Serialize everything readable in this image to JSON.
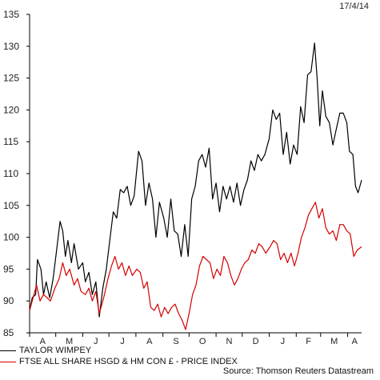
{
  "date_stamp": "17/4/14",
  "source": "Source: Thomson Reuters Datastream",
  "chart_data": {
    "type": "line",
    "ylim": [
      85,
      135
    ],
    "yticks": [
      85,
      90,
      95,
      100,
      105,
      110,
      115,
      120,
      125,
      130,
      135
    ],
    "months": [
      "A",
      "M",
      "J",
      "J",
      "A",
      "S",
      "O",
      "N",
      "D",
      "J",
      "F",
      "M",
      "A"
    ],
    "x_start": "2013-04-01",
    "series": [
      {
        "name": "TAYLOR WIMPEY",
        "color": "#000000",
        "points": [
          [
            "2013-04-01",
            88.5
          ],
          [
            "2013-04-04",
            90.5
          ],
          [
            "2013-04-08",
            91
          ],
          [
            "2013-04-10",
            96.5
          ],
          [
            "2013-04-14",
            95
          ],
          [
            "2013-04-17",
            91
          ],
          [
            "2013-04-20",
            93
          ],
          [
            "2013-04-24",
            90.5
          ],
          [
            "2013-04-28",
            93.5
          ],
          [
            "2013-05-02",
            98
          ],
          [
            "2013-05-06",
            102.5
          ],
          [
            "2013-05-09",
            101
          ],
          [
            "2013-05-12",
            97
          ],
          [
            "2013-05-15",
            99.5
          ],
          [
            "2013-05-19",
            96
          ],
          [
            "2013-05-22",
            99
          ],
          [
            "2013-05-27",
            95
          ],
          [
            "2013-06-01",
            96
          ],
          [
            "2013-06-04",
            93
          ],
          [
            "2013-06-08",
            94.5
          ],
          [
            "2013-06-12",
            91
          ],
          [
            "2013-06-16",
            93
          ],
          [
            "2013-06-20",
            87.5
          ],
          [
            "2013-06-24",
            92
          ],
          [
            "2013-06-28",
            95
          ],
          [
            "2013-07-02",
            99.5
          ],
          [
            "2013-07-06",
            104
          ],
          [
            "2013-07-10",
            103
          ],
          [
            "2013-07-14",
            107.5
          ],
          [
            "2013-07-18",
            107
          ],
          [
            "2013-07-22",
            108
          ],
          [
            "2013-07-26",
            105
          ],
          [
            "2013-07-30",
            106.5
          ],
          [
            "2013-08-04",
            113.5
          ],
          [
            "2013-08-08",
            112
          ],
          [
            "2013-08-12",
            105
          ],
          [
            "2013-08-16",
            108.5
          ],
          [
            "2013-08-20",
            106
          ],
          [
            "2013-08-24",
            100
          ],
          [
            "2013-08-28",
            105.5
          ],
          [
            "2013-09-02",
            103
          ],
          [
            "2013-09-06",
            100
          ],
          [
            "2013-09-10",
            106
          ],
          [
            "2013-09-14",
            101
          ],
          [
            "2013-09-18",
            100.5
          ],
          [
            "2013-09-22",
            97
          ],
          [
            "2013-09-26",
            102
          ],
          [
            "2013-09-30",
            97
          ],
          [
            "2013-10-04",
            106
          ],
          [
            "2013-10-08",
            108
          ],
          [
            "2013-10-12",
            112
          ],
          [
            "2013-10-16",
            113
          ],
          [
            "2013-10-20",
            111
          ],
          [
            "2013-10-24",
            114
          ],
          [
            "2013-10-28",
            106
          ],
          [
            "2013-11-01",
            108.5
          ],
          [
            "2013-11-05",
            104
          ],
          [
            "2013-11-09",
            108
          ],
          [
            "2013-11-13",
            106
          ],
          [
            "2013-11-17",
            108
          ],
          [
            "2013-11-21",
            105.5
          ],
          [
            "2013-11-25",
            108.5
          ],
          [
            "2013-11-29",
            105
          ],
          [
            "2013-12-03",
            107.5
          ],
          [
            "2013-12-07",
            109
          ],
          [
            "2013-12-11",
            112
          ],
          [
            "2013-12-15",
            110.5
          ],
          [
            "2013-12-19",
            113
          ],
          [
            "2013-12-23",
            112
          ],
          [
            "2013-12-27",
            113
          ],
          [
            "2014-01-01",
            115.5
          ],
          [
            "2014-01-05",
            120
          ],
          [
            "2014-01-09",
            118.5
          ],
          [
            "2014-01-13",
            119.5
          ],
          [
            "2014-01-17",
            113
          ],
          [
            "2014-01-21",
            116.5
          ],
          [
            "2014-01-25",
            111.5
          ],
          [
            "2014-01-29",
            114.5
          ],
          [
            "2014-02-02",
            113
          ],
          [
            "2014-02-06",
            120.5
          ],
          [
            "2014-02-10",
            118
          ],
          [
            "2014-02-14",
            125.5
          ],
          [
            "2014-02-18",
            126
          ],
          [
            "2014-02-22",
            130.5
          ],
          [
            "2014-02-25",
            125
          ],
          [
            "2014-02-28",
            117.5
          ],
          [
            "2014-03-03",
            123
          ],
          [
            "2014-03-07",
            119
          ],
          [
            "2014-03-11",
            118
          ],
          [
            "2014-03-15",
            114.5
          ],
          [
            "2014-03-19",
            117
          ],
          [
            "2014-03-23",
            119.5
          ],
          [
            "2014-03-27",
            119.5
          ],
          [
            "2014-03-31",
            118
          ],
          [
            "2014-04-03",
            113.5
          ],
          [
            "2014-04-07",
            113
          ],
          [
            "2014-04-10",
            108
          ],
          [
            "2014-04-13",
            107
          ],
          [
            "2014-04-17",
            109
          ]
        ]
      },
      {
        "name": "FTSE ALL SHARE HSGD & HM CON £ - PRICE INDEX",
        "color": "#d40000",
        "points": [
          [
            "2013-04-01",
            88.5
          ],
          [
            "2013-04-05",
            90.5
          ],
          [
            "2013-04-09",
            92.5
          ],
          [
            "2013-04-13",
            90
          ],
          [
            "2013-04-17",
            91
          ],
          [
            "2013-04-21",
            90.5
          ],
          [
            "2013-04-25",
            90
          ],
          [
            "2013-04-30",
            92
          ],
          [
            "2013-05-05",
            93.5
          ],
          [
            "2013-05-09",
            96
          ],
          [
            "2013-05-13",
            94
          ],
          [
            "2013-05-17",
            95
          ],
          [
            "2013-05-22",
            92.5
          ],
          [
            "2013-05-26",
            93.5
          ],
          [
            "2013-05-30",
            91.5
          ],
          [
            "2013-06-04",
            91
          ],
          [
            "2013-06-08",
            92
          ],
          [
            "2013-06-12",
            90
          ],
          [
            "2013-06-16",
            91.5
          ],
          [
            "2013-06-20",
            88
          ],
          [
            "2013-06-25",
            90.5
          ],
          [
            "2013-06-30",
            93.5
          ],
          [
            "2013-07-04",
            95.5
          ],
          [
            "2013-07-08",
            97
          ],
          [
            "2013-07-12",
            95
          ],
          [
            "2013-07-16",
            96
          ],
          [
            "2013-07-20",
            94
          ],
          [
            "2013-07-24",
            95.5
          ],
          [
            "2013-07-28",
            94
          ],
          [
            "2013-08-02",
            95
          ],
          [
            "2013-08-06",
            94.5
          ],
          [
            "2013-08-10",
            92
          ],
          [
            "2013-08-14",
            93
          ],
          [
            "2013-08-18",
            89
          ],
          [
            "2013-08-22",
            88.5
          ],
          [
            "2013-08-26",
            89.5
          ],
          [
            "2013-08-30",
            87.5
          ],
          [
            "2013-09-03",
            89
          ],
          [
            "2013-09-07",
            88
          ],
          [
            "2013-09-11",
            89
          ],
          [
            "2013-09-15",
            89.5
          ],
          [
            "2013-09-19",
            88
          ],
          [
            "2013-09-23",
            87
          ],
          [
            "2013-09-27",
            85.5
          ],
          [
            "2013-10-01",
            88
          ],
          [
            "2013-10-05",
            91
          ],
          [
            "2013-10-09",
            92.5
          ],
          [
            "2013-10-13",
            95.5
          ],
          [
            "2013-10-17",
            97
          ],
          [
            "2013-10-21",
            96.5
          ],
          [
            "2013-10-25",
            96
          ],
          [
            "2013-10-29",
            93.5
          ],
          [
            "2013-11-02",
            95
          ],
          [
            "2013-11-06",
            94
          ],
          [
            "2013-11-10",
            97
          ],
          [
            "2013-11-14",
            96
          ],
          [
            "2013-11-18",
            94
          ],
          [
            "2013-11-22",
            92.5
          ],
          [
            "2013-11-26",
            93.5
          ],
          [
            "2013-11-30",
            95
          ],
          [
            "2013-12-04",
            96
          ],
          [
            "2013-12-08",
            96.5
          ],
          [
            "2013-12-12",
            98
          ],
          [
            "2013-12-16",
            97.5
          ],
          [
            "2013-12-20",
            99
          ],
          [
            "2013-12-24",
            98.5
          ],
          [
            "2013-12-28",
            97.5
          ],
          [
            "2014-01-02",
            98.5
          ],
          [
            "2014-01-06",
            99.5
          ],
          [
            "2014-01-10",
            99
          ],
          [
            "2014-01-14",
            96.5
          ],
          [
            "2014-01-18",
            97.5
          ],
          [
            "2014-01-22",
            96
          ],
          [
            "2014-01-26",
            97.5
          ],
          [
            "2014-01-30",
            95.5
          ],
          [
            "2014-02-03",
            97.5
          ],
          [
            "2014-02-07",
            100
          ],
          [
            "2014-02-11",
            101.5
          ],
          [
            "2014-02-15",
            103.5
          ],
          [
            "2014-02-19",
            104.5
          ],
          [
            "2014-02-23",
            105.5
          ],
          [
            "2014-02-27",
            103
          ],
          [
            "2014-03-03",
            104.5
          ],
          [
            "2014-03-07",
            101.5
          ],
          [
            "2014-03-11",
            100.5
          ],
          [
            "2014-03-15",
            101
          ],
          [
            "2014-03-19",
            99.5
          ],
          [
            "2014-03-23",
            102
          ],
          [
            "2014-03-27",
            102
          ],
          [
            "2014-03-31",
            101
          ],
          [
            "2014-04-04",
            100.5
          ],
          [
            "2014-04-08",
            97
          ],
          [
            "2014-04-12",
            98
          ],
          [
            "2014-04-17",
            98.5
          ]
        ]
      }
    ]
  }
}
